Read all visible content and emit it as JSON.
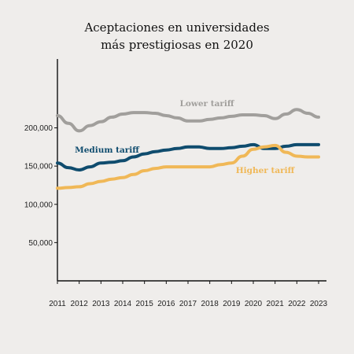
{
  "chart_data": {
    "type": "line",
    "title_lines": [
      "Aceptaciones en universidades",
      "más prestigiosas en 2020"
    ],
    "xlabel": "",
    "ylabel": "",
    "x": [
      2011,
      2011.5,
      2012,
      2012.5,
      2013,
      2013.5,
      2014,
      2014.5,
      2015,
      2015.5,
      2016,
      2016.5,
      2017,
      2017.5,
      2018,
      2018.5,
      2019,
      2019.5,
      2020,
      2020.5,
      2021,
      2021.5,
      2022,
      2022.5,
      2023
    ],
    "xlim": [
      2011,
      2023
    ],
    "ylim": [
      0,
      290000
    ],
    "x_ticks": [
      "2011",
      "2012",
      "2013",
      "2014",
      "2015",
      "2016",
      "2017",
      "2018",
      "2019",
      "2020",
      "2021",
      "2022",
      "2023"
    ],
    "y_ticks": [
      {
        "value": 50000,
        "label": "50,000"
      },
      {
        "value": 100000,
        "label": "100,000"
      },
      {
        "value": 150000,
        "label": "150,000"
      },
      {
        "value": 200000,
        "label": "200,000"
      }
    ],
    "grid": false,
    "series": [
      {
        "name": "Lower tariff",
        "color": "#a19f9c",
        "values": [
          216000,
          206000,
          196000,
          203000,
          208000,
          214000,
          218000,
          220000,
          220000,
          219000,
          216000,
          213000,
          209000,
          209000,
          211000,
          213000,
          215000,
          217000,
          217000,
          216000,
          212000,
          218000,
          224000,
          219000,
          214000
        ]
      },
      {
        "name": "Medium tariff",
        "color": "#0f4c6e",
        "values": [
          154000,
          148000,
          145000,
          149000,
          154000,
          155000,
          157000,
          162000,
          166000,
          169000,
          171000,
          173000,
          175000,
          175000,
          173000,
          173000,
          174000,
          176000,
          178000,
          173000,
          173000,
          176000,
          178000,
          178000,
          178000
        ]
      },
      {
        "name": "Higher tariff",
        "color": "#f0b857",
        "values": [
          121000,
          122000,
          123000,
          127000,
          130000,
          133000,
          135000,
          139000,
          144000,
          147000,
          149000,
          149000,
          149000,
          149000,
          149000,
          152000,
          154000,
          163000,
          172000,
          175000,
          177000,
          168000,
          163000,
          162000,
          162000
        ]
      }
    ]
  }
}
